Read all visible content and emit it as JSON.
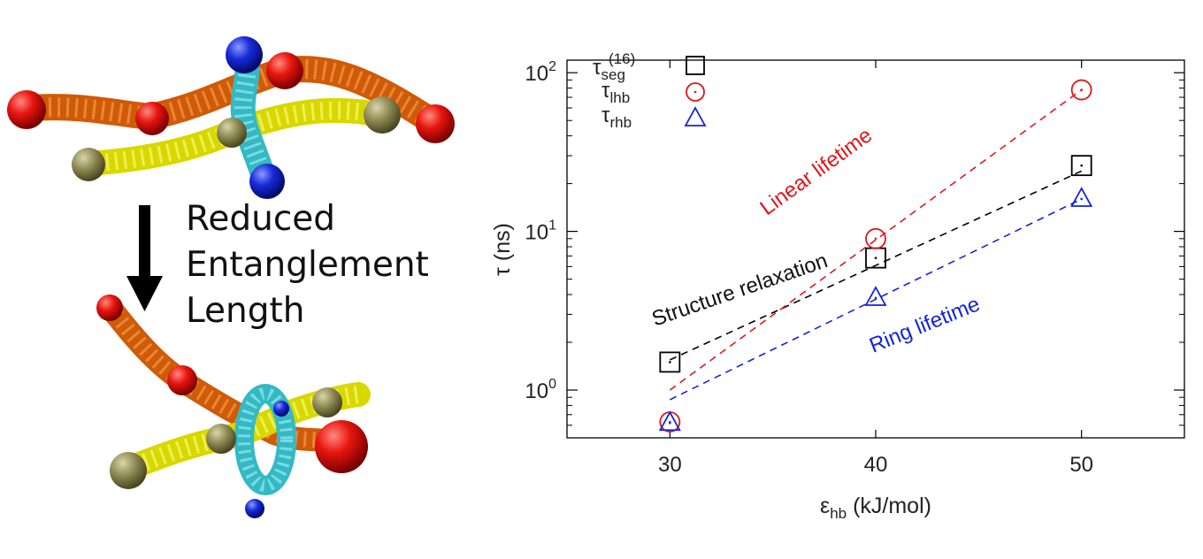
{
  "illustration": {
    "caption_lines": [
      "Reduced",
      "Entanglement",
      "Length"
    ]
  },
  "chart_data": {
    "type": "scatter",
    "xlabel_base": "ε",
    "xlabel_sub": "hb",
    "xlabel_rest": " (kJ/mol)",
    "ylabel": "τ (ns)",
    "xlim": [
      25,
      55
    ],
    "ylim": [
      0.5,
      120
    ],
    "y_scale": "log",
    "x_ticks": [
      30,
      40,
      50
    ],
    "y_ticks": [
      {
        "value": 1,
        "base": "10",
        "exp": "0"
      },
      {
        "value": 10,
        "base": "10",
        "exp": "1"
      },
      {
        "value": 100,
        "base": "10",
        "exp": "2"
      }
    ],
    "grid": false,
    "legend_position": "top-left",
    "series": [
      {
        "key": "seg",
        "legend_base": "τ",
        "legend_sub": "seg",
        "legend_sup": "(16)",
        "marker": "square",
        "color": "#000000",
        "x": [
          30,
          40,
          50
        ],
        "y": [
          1.5,
          6.8,
          26
        ],
        "fit": {
          "x": [
            30,
            50
          ],
          "y": [
            1.55,
            24
          ]
        }
      },
      {
        "key": "lhb",
        "legend_base": "τ",
        "legend_sub": "lhb",
        "legend_sup": "",
        "marker": "circle",
        "color": "#e0161c",
        "x": [
          30,
          40,
          50
        ],
        "y": [
          0.63,
          9.0,
          78
        ],
        "fit": {
          "x": [
            30,
            50
          ],
          "y": [
            1.0,
            78
          ]
        }
      },
      {
        "key": "rhb",
        "legend_base": "τ",
        "legend_sub": "rhb",
        "legend_sup": "",
        "marker": "triangle",
        "color": "#1424d8",
        "x": [
          30,
          40,
          50
        ],
        "y": [
          0.62,
          3.8,
          16
        ],
        "fit": {
          "x": [
            30,
            50
          ],
          "y": [
            0.87,
            16
          ]
        }
      }
    ],
    "annotations": [
      {
        "text": "Linear lifetime",
        "color": "#e0161c",
        "x": 37.3,
        "y": 22,
        "angle": -36
      },
      {
        "text": "Structure relaxation",
        "color": "#111111",
        "x": 33.5,
        "y": 3.9,
        "angle": -19
      },
      {
        "text": "Ring lifetime",
        "color": "#1424d8",
        "x": 42.5,
        "y": 2.35,
        "angle": -22
      }
    ]
  }
}
